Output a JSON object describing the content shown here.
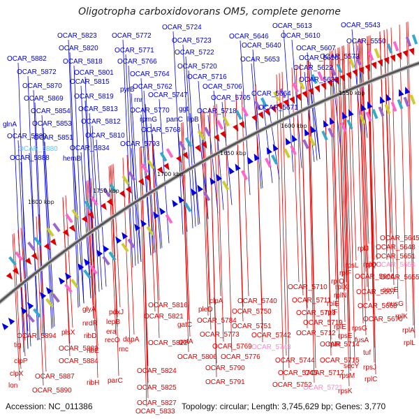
{
  "title": "Oligotropha carboxidovorans OM5, complete genome",
  "footer": {
    "accession": "Accession: NC_011386",
    "summary": "Topology: circular; Length: 3,745,629 bp; Genes: 3,770"
  },
  "colors": {
    "forward_strand": "#0000dd",
    "reverse_strand": "#dd0000",
    "pseudo_label": "#ff88cc",
    "rna_label": "#55c8ff",
    "backbone": "#555555",
    "gc_marker": "#119911"
  },
  "kbp_marks": [
    {
      "text": "1550 kbp"
    },
    {
      "text": "1600 kbp"
    },
    {
      "text": "1650 kbp"
    },
    {
      "text": "1700 kbp"
    },
    {
      "text": "1750 kbp"
    },
    {
      "text": "1800 kbp"
    }
  ],
  "top_labels": [
    {
      "text": "OCAR_5724",
      "strand": "+"
    },
    {
      "text": "OCAR_5613",
      "strand": "+"
    },
    {
      "text": "OCAR_5543",
      "strand": "+"
    },
    {
      "text": "OCAR_5823",
      "strand": "+"
    },
    {
      "text": "OCAR_5772",
      "strand": "+"
    },
    {
      "text": "OCAR_5723",
      "strand": "+"
    },
    {
      "text": "OCAR_5646",
      "strand": "+"
    },
    {
      "text": "OCAR_5610",
      "strand": "+"
    },
    {
      "text": "OCAR_5550",
      "strand": "+"
    },
    {
      "text": "OCAR_5820",
      "strand": "+"
    },
    {
      "text": "OCAR_5771",
      "strand": "+"
    },
    {
      "text": "OCAR_5722",
      "strand": "+"
    },
    {
      "text": "OCAR_5640",
      "strand": "+"
    },
    {
      "text": "OCAR_5607",
      "strand": "+"
    },
    {
      "text": "OCAR_5882",
      "strand": "+"
    },
    {
      "text": "OCAR_5818",
      "strand": "+"
    },
    {
      "text": "OCAR_5766",
      "strand": "+"
    },
    {
      "text": "OCAR_5720",
      "strand": "+"
    },
    {
      "text": "OCAR_5653",
      "strand": "+"
    },
    {
      "text": "OCAR_5616",
      "strand": "+"
    },
    {
      "text": "OCAR_5573",
      "strand": "+"
    },
    {
      "text": "OCAR_5872",
      "strand": "+"
    },
    {
      "text": "OCAR_5801",
      "strand": "+"
    },
    {
      "text": "OCAR_5764",
      "strand": "+"
    },
    {
      "text": "OCAR_5716",
      "strand": "+"
    },
    {
      "text": "OCAR_5622",
      "strand": "+"
    },
    {
      "text": "OCAR_5815",
      "strand": "+"
    },
    {
      "text": "OCAR_5632",
      "strand": "+"
    },
    {
      "text": "OCAR_5870",
      "strand": "+"
    },
    {
      "text": "pyrB",
      "strand": "+"
    },
    {
      "text": "OCAR_5762",
      "strand": "+"
    },
    {
      "text": "OCAR_5706",
      "strand": "+"
    },
    {
      "text": "OCAR_5819",
      "strand": "+"
    },
    {
      "text": "OCAR_5747",
      "strand": "+"
    },
    {
      "text": "OCAR_5705",
      "strand": "+"
    },
    {
      "text": "OCAR_5664",
      "strand": "+"
    },
    {
      "text": "OCAR_5869",
      "strand": "+"
    },
    {
      "text": "rnr",
      "strand": "+"
    },
    {
      "text": "OCAR_5813",
      "strand": "+"
    },
    {
      "text": "OCAR_5770",
      "strand": "+"
    },
    {
      "text": "ggt",
      "strand": "+"
    },
    {
      "text": "OCAR_5718",
      "strand": "+"
    },
    {
      "text": "OCAR_5671",
      "strand": "+"
    },
    {
      "text": "OCAR_5854",
      "strand": "+"
    },
    {
      "text": "rpmG",
      "strand": "+"
    },
    {
      "text": "panC",
      "strand": "+"
    },
    {
      "text": "glnA",
      "strand": "+"
    },
    {
      "text": "OCAR_5812",
      "strand": "+"
    },
    {
      "text": "lipB",
      "strand": "+"
    },
    {
      "text": "OCAR_5853",
      "strand": "+"
    },
    {
      "text": "OCAR_5768",
      "strand": "+"
    },
    {
      "text": "OCAR_5889",
      "strand": "+"
    },
    {
      "text": "OCAR_5810",
      "strand": "+"
    },
    {
      "text": "OCAR_5851",
      "strand": "+"
    },
    {
      "text": "OCAR_5793",
      "strand": "+"
    },
    {
      "text": "OCAR_5880",
      "strand": "rna"
    },
    {
      "text": "OCAR_5834",
      "strand": "+"
    },
    {
      "text": "OCAR_5888",
      "strand": "+"
    },
    {
      "text": "hemB",
      "strand": "+"
    }
  ],
  "bottom_labels": [
    {
      "text": "OCAR_5645",
      "strand": "-"
    },
    {
      "text": "rplJ",
      "strand": "-"
    },
    {
      "text": "OCAR_5648",
      "strand": "-"
    },
    {
      "text": "OCAR_5651",
      "strand": "-"
    },
    {
      "text": "rplQ",
      "strand": "-"
    },
    {
      "text": "rpsL",
      "strand": "-"
    },
    {
      "text": "rpoC",
      "strand": "-"
    },
    {
      "text": "OCAR_5654",
      "strand": "pseudo"
    },
    {
      "text": "rplF",
      "strand": "-"
    },
    {
      "text": "OCAR_5666",
      "strand": "-"
    },
    {
      "text": "OCAR_5655",
      "strand": "-"
    },
    {
      "text": "rplO",
      "strand": "-"
    },
    {
      "text": "rplX",
      "strand": "-"
    },
    {
      "text": "secE",
      "strand": "-"
    },
    {
      "text": "OCAR_5710",
      "strand": "-"
    },
    {
      "text": "rplN",
      "strand": "-"
    },
    {
      "text": "OCAR_5667",
      "strand": "-"
    },
    {
      "text": "OCAR_5711",
      "strand": "-"
    },
    {
      "text": "rplE",
      "strand": "-"
    },
    {
      "text": "nusG",
      "strand": "-"
    },
    {
      "text": "clpA",
      "strand": "-"
    },
    {
      "text": "OCAR_5740",
      "strand": "-"
    },
    {
      "text": "OCAR_5668",
      "strand": "-"
    },
    {
      "text": "OCAR_5713",
      "strand": "-"
    },
    {
      "text": "rplF",
      "strand": "-"
    },
    {
      "text": "rplK",
      "strand": "-"
    },
    {
      "text": "OCAR_5750",
      "strand": "-"
    },
    {
      "text": "OCAR_5670",
      "strand": "-"
    },
    {
      "text": "pleD",
      "strand": "-"
    },
    {
      "text": "OCAR_5719",
      "strand": "-"
    },
    {
      "text": "rplE",
      "strand": "-"
    },
    {
      "text": "rpsG",
      "strand": "-"
    },
    {
      "text": "OCAR_5816",
      "strand": "-"
    },
    {
      "text": "OCAR_5751",
      "strand": "-"
    },
    {
      "text": "rplA",
      "strand": "-"
    },
    {
      "text": "OCAR_5784",
      "strand": "-"
    },
    {
      "text": "OCAR_5742",
      "strand": "-"
    },
    {
      "text": "OCAR_5712",
      "strand": "-"
    },
    {
      "text": "OCAR_5821",
      "strand": "-"
    },
    {
      "text": "gatC",
      "strand": "-"
    },
    {
      "text": "rpsE",
      "strand": "-"
    },
    {
      "text": "fusA",
      "strand": "-"
    },
    {
      "text": "OCAR_5894",
      "strand": "-"
    },
    {
      "text": "plsX",
      "strand": "-"
    },
    {
      "text": "glyA",
      "strand": "-"
    },
    {
      "text": "pdxJ",
      "strand": "-"
    },
    {
      "text": "OCAR_5773",
      "strand": "-"
    },
    {
      "text": "rplR",
      "strand": "-"
    },
    {
      "text": "tuf",
      "strand": "-"
    },
    {
      "text": "rplL",
      "strand": "-"
    },
    {
      "text": "lepB",
      "strand": "-"
    },
    {
      "text": "OCAR_5822",
      "strand": "-"
    },
    {
      "text": "gatA",
      "strand": "-"
    },
    {
      "text": "tig",
      "strand": "-"
    },
    {
      "text": "OCAR_5883",
      "strand": "-"
    },
    {
      "text": "nrdR",
      "strand": "-"
    },
    {
      "text": "era",
      "strand": "-"
    },
    {
      "text": "OCAR_5769",
      "strand": "-"
    },
    {
      "text": "OCAR_5743",
      "strand": "pseudo"
    },
    {
      "text": "OCAR_5714",
      "strand": "-"
    },
    {
      "text": "OCAR_5776",
      "strand": "-"
    },
    {
      "text": "rpsM",
      "strand": "-"
    },
    {
      "text": "recO",
      "strand": "-"
    },
    {
      "text": "dapA",
      "strand": "-"
    },
    {
      "text": "OCAR_5806",
      "strand": "-"
    },
    {
      "text": "secY",
      "strand": "-"
    },
    {
      "text": "rpsJ",
      "strand": "-"
    },
    {
      "text": "clpP",
      "strand": "-"
    },
    {
      "text": "OCAR_5884",
      "strand": "-"
    },
    {
      "text": "ribD",
      "strand": "-"
    },
    {
      "text": "OCAR_5744",
      "strand": "-"
    },
    {
      "text": "OCAR_5715",
      "strand": "-"
    },
    {
      "text": "OCAR_5790",
      "strand": "-"
    },
    {
      "text": "rpsK",
      "strand": "-"
    },
    {
      "text": "OCAR_5824",
      "strand": "-"
    },
    {
      "text": "rnc",
      "strand": "-"
    },
    {
      "text": "OCAR_5745",
      "strand": "-"
    },
    {
      "text": "OCAR_5717",
      "strand": "-"
    },
    {
      "text": "rplC",
      "strand": "-"
    },
    {
      "text": "clpX",
      "strand": "-"
    },
    {
      "text": "ribE",
      "strand": "-"
    },
    {
      "text": "OCAR_5887",
      "strand": "-"
    },
    {
      "text": "OCAR_5791",
      "strand": "-"
    },
    {
      "text": "parC",
      "strand": "-"
    },
    {
      "text": "ribH",
      "strand": "-"
    },
    {
      "text": "lon",
      "strand": "-"
    },
    {
      "text": "OCAR_5825",
      "strand": "-"
    },
    {
      "text": "OCAR_5752",
      "strand": "-"
    },
    {
      "text": "OCAR_5721",
      "strand": "pseudo"
    },
    {
      "text": "OCAR_5890",
      "strand": "-"
    },
    {
      "text": "OCAR_5827",
      "strand": "-"
    },
    {
      "text": "OCAR_5833",
      "strand": "-"
    }
  ]
}
